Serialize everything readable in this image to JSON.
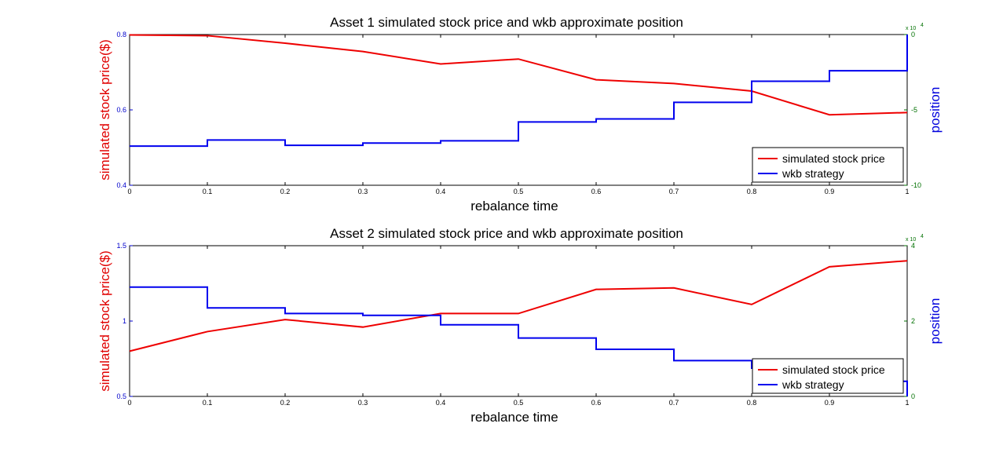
{
  "chart_data": [
    {
      "type": "line",
      "title": "Asset 1 simulated stock price and wkb approximate position",
      "xlabel": "rebalance time",
      "ylabel": "simulated stock price($)",
      "ylabel_right": "position",
      "xlim": [
        0,
        1
      ],
      "ylim": [
        0.4,
        0.8
      ],
      "ylim_right": [
        -10,
        0
      ],
      "xticks": [
        "0",
        "0.1",
        "0.2",
        "0.3",
        "0.4",
        "0.5",
        "0.6",
        "0.7",
        "0.8",
        "0.9",
        "1"
      ],
      "yticks": [
        "0.4",
        "0.6",
        "0.8"
      ],
      "yticks_right": [
        "-10",
        "-5",
        "0"
      ],
      "right_multiplier": "x 10",
      "right_multiplier_exp": "4",
      "legend_position": "bottom-right",
      "grid": false,
      "colors": {
        "price": "#ee0000",
        "strategy": "#0000ee"
      },
      "series": [
        {
          "name": "simulated stock price",
          "axis": "left",
          "style": "line",
          "x": [
            0,
            0.1,
            0.2,
            0.3,
            0.4,
            0.5,
            0.6,
            0.7,
            0.8,
            0.9,
            1
          ],
          "values": [
            0.799,
            0.797,
            0.777,
            0.755,
            0.722,
            0.735,
            0.68,
            0.67,
            0.65,
            0.587,
            0.593
          ]
        },
        {
          "name": "wkb strategy",
          "axis": "right",
          "style": "step",
          "x": [
            0,
            0.1,
            0.2,
            0.3,
            0.4,
            0.5,
            0.6,
            0.7,
            0.8,
            0.9,
            1
          ],
          "values": [
            -7.4,
            -7.0,
            -7.35,
            -7.2,
            -7.05,
            -5.8,
            -5.6,
            -4.5,
            -3.1,
            -2.4,
            0
          ]
        }
      ]
    },
    {
      "type": "line",
      "title": "Asset 2 simulated stock price and wkb approximate position",
      "xlabel": "rebalance time",
      "ylabel": "simulated stock price($)",
      "ylabel_right": "position",
      "xlim": [
        0,
        1
      ],
      "ylim": [
        0.5,
        1.5
      ],
      "ylim_right": [
        0,
        4
      ],
      "xticks": [
        "0",
        "0.1",
        "0.2",
        "0.3",
        "0.4",
        "0.5",
        "0.6",
        "0.7",
        "0.8",
        "0.9",
        "1"
      ],
      "yticks": [
        "0.5",
        "1",
        "1.5"
      ],
      "yticks_right": [
        "0",
        "2",
        "4"
      ],
      "right_multiplier": "x 10",
      "right_multiplier_exp": "4",
      "legend_position": "bottom-right",
      "grid": false,
      "colors": {
        "price": "#ee0000",
        "strategy": "#0000ee"
      },
      "series": [
        {
          "name": "simulated stock price",
          "axis": "left",
          "style": "line",
          "x": [
            0,
            0.1,
            0.2,
            0.3,
            0.4,
            0.5,
            0.6,
            0.7,
            0.8,
            0.9,
            1
          ],
          "values": [
            0.8,
            0.93,
            1.01,
            0.96,
            1.05,
            1.05,
            1.21,
            1.22,
            1.11,
            1.36,
            1.4
          ]
        },
        {
          "name": "wkb strategy",
          "axis": "right",
          "style": "step",
          "x": [
            0,
            0.1,
            0.2,
            0.3,
            0.4,
            0.5,
            0.6,
            0.7,
            0.8,
            0.9,
            1
          ],
          "values": [
            2.9,
            2.35,
            2.2,
            2.15,
            1.9,
            1.55,
            1.25,
            0.95,
            0.75,
            0.4,
            0
          ]
        }
      ]
    }
  ]
}
